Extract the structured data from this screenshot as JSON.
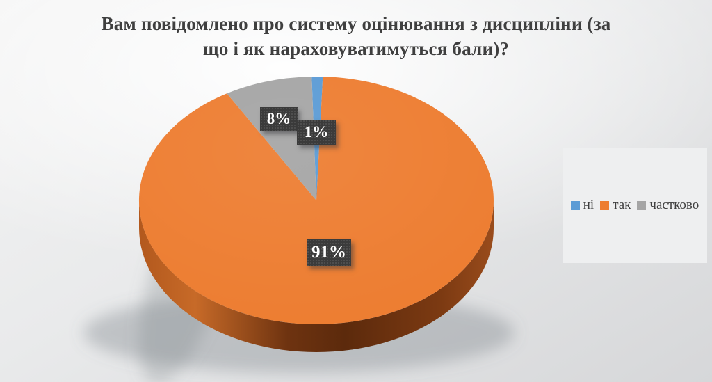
{
  "title": {
    "full": "Вам повідомлено про систему оцінювання з дисципліни (за що і як нараховуватимуться бали)?",
    "lines": [
      "Вам повідомлено про систему оцінювання з дисципліни (за",
      "що і як нараховуватимуться бали)?"
    ]
  },
  "chart_data": {
    "type": "pie",
    "title": "Вам повідомлено про систему оцінювання з дисципліни (за що і як нараховуватимуться бали)?",
    "effect": "3d",
    "data_labels": "percent",
    "legend_position": "right",
    "slices": [
      {
        "label": "ні",
        "value": 1,
        "display": "1%",
        "color": "#5B9BD5"
      },
      {
        "label": "так",
        "value": 91,
        "display": "91%",
        "color": "#ED7D31"
      },
      {
        "label": "частково",
        "value": 8,
        "display": "8%",
        "color": "#A5A5A5"
      }
    ]
  }
}
